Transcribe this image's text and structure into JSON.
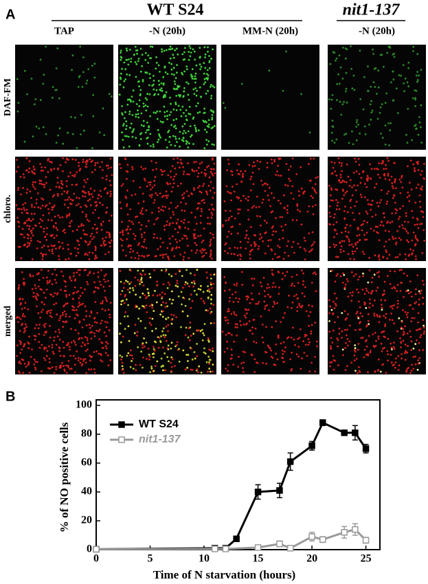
{
  "panel_a": {
    "label": "A",
    "groups": [
      "WT S24",
      "nit1-137"
    ],
    "columns": [
      "TAP",
      "-N (20h)",
      "MM-N (20h)",
      "-N (20h)"
    ],
    "rows": [
      "DAF-FM",
      "chloro.",
      "merged"
    ]
  },
  "panel_b_label": "B",
  "chart_data": {
    "type": "line",
    "x_label": "Time of N starvation (hours)",
    "y_label": "% of NO positive cells",
    "xlim": [
      0,
      26.3
    ],
    "xticks": [
      0,
      5,
      10,
      15,
      20,
      25
    ],
    "ylim": [
      0,
      100
    ],
    "yticks": [
      0,
      20,
      40,
      60,
      80,
      100
    ],
    "legend": "upper left",
    "series": [
      {
        "name": "WT S24",
        "color": "#000000",
        "marker": "filled-square",
        "x": [
          0,
          11,
          12,
          13,
          15,
          17,
          18,
          20,
          21,
          23,
          24,
          25
        ],
        "values": [
          0.3,
          1,
          1,
          7.5,
          40,
          41,
          61,
          72,
          88,
          81,
          81,
          70
        ],
        "errors": [
          0.3,
          0.8,
          0.5,
          1.5,
          5,
          5,
          6,
          3,
          2,
          1.5,
          5,
          3
        ]
      },
      {
        "name": "nit1-137",
        "color": "#999999",
        "marker": "open-square",
        "x": [
          0,
          11,
          12,
          15,
          17,
          18,
          20,
          21,
          23,
          24,
          25
        ],
        "values": [
          0.3,
          0.5,
          0.5,
          1.5,
          4,
          1,
          9,
          7,
          12,
          14,
          6.5
        ],
        "errors": [
          0.2,
          0.3,
          0.3,
          0.8,
          2,
          1,
          3,
          2,
          4,
          4,
          2
        ]
      }
    ]
  }
}
